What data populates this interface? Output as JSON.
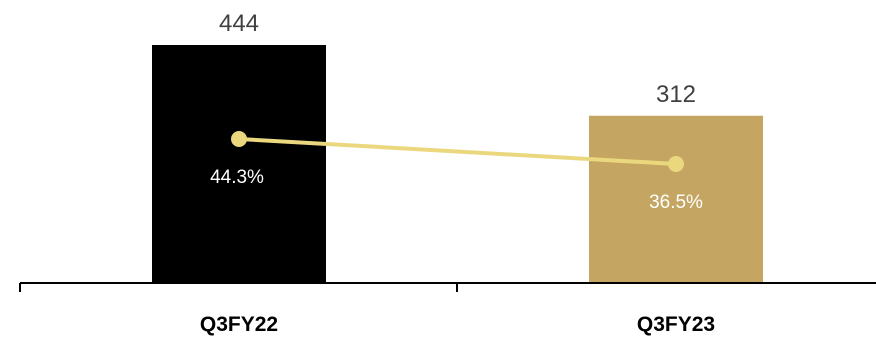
{
  "chart_data": {
    "type": "bar",
    "categories": [
      "Q3FY22",
      "Q3FY23"
    ],
    "series": [
      {
        "type": "bar",
        "values": [
          444,
          312
        ],
        "value_labels": [
          "444",
          "312"
        ],
        "colors": [
          "#000000",
          "#C4A662"
        ]
      },
      {
        "type": "line",
        "values": [
          44.3,
          36.5
        ],
        "value_labels": [
          "44.3%",
          "36.5%"
        ],
        "color": "#EBD87E"
      }
    ],
    "title": "",
    "xlabel": "",
    "ylabel": "",
    "grid": false,
    "legend": "none"
  }
}
